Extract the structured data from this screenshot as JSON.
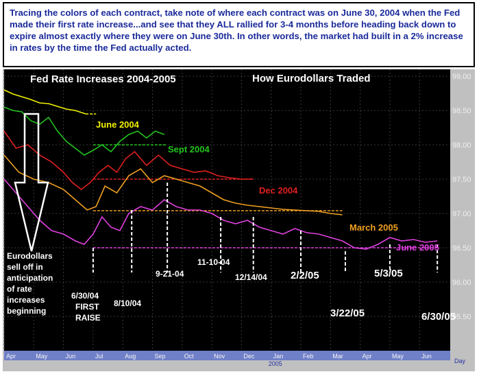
{
  "caption": "Tracing the colors of each contract, take note of where each contract was on June 30, 2004 when the Fed made their first rate increase...and see that they ALL rallied for 3-4 months before heading back down to expire almost exactly where they were on June 30th. In other words, the market had built in a 2% increase in rates by the time the Fed actually acted.",
  "chart_data": {
    "type": "line",
    "title": "Fed Rate Increases 2004-2005",
    "subtitle": "How Eurodollars Traded",
    "x_unit_label": "Day",
    "x_ticks": [
      "Apr",
      "May",
      "Jun",
      "Jul",
      "Aug",
      "Sep",
      "Oct",
      "Nov",
      "Dec",
      "Jan",
      "Feb",
      "Mar",
      "Apr",
      "May",
      "Jun"
    ],
    "x_year_label": "2005",
    "y_ticks": [
      "99.00",
      "98.50",
      "98.00",
      "97.50",
      "97.00",
      "96.50",
      "96.00",
      "95.50"
    ],
    "ylim": [
      95.0,
      99.1
    ],
    "grid": true,
    "series": [
      {
        "name": "June 2004",
        "color": "#f2f200",
        "x": [
          0,
          0.3,
          0.6,
          0.9,
          1.2,
          1.5,
          1.8,
          2.1,
          2.4,
          2.75
        ],
        "y": [
          98.8,
          98.74,
          98.7,
          98.66,
          98.61,
          98.6,
          98.56,
          98.52,
          98.5,
          98.45
        ],
        "ref_level": 98.45,
        "ref_x": [
          2.75,
          3.1
        ]
      },
      {
        "name": "Sept 2004",
        "color": "#22c41e",
        "x": [
          0,
          0.3,
          0.6,
          0.9,
          1.2,
          1.5,
          1.8,
          2.1,
          2.4,
          2.7,
          3.0,
          3.3,
          3.6,
          3.9,
          4.2,
          4.5,
          4.8,
          5.1,
          5.4
        ],
        "y": [
          98.55,
          98.5,
          98.48,
          98.35,
          98.3,
          98.4,
          98.2,
          98.05,
          97.95,
          97.85,
          97.92,
          98.0,
          97.9,
          98.05,
          98.15,
          98.2,
          98.1,
          98.2,
          98.15
        ],
        "ref_level": 98.0,
        "ref_x": [
          3.0,
          5.5
        ]
      },
      {
        "name": "Dec 2004",
        "color": "#e02020",
        "x": [
          0,
          0.4,
          0.8,
          1.2,
          1.6,
          2.0,
          2.3,
          2.6,
          2.9,
          3.2,
          3.5,
          3.8,
          4.1,
          4.4,
          4.8,
          5.2,
          5.6,
          6.0,
          6.4,
          6.8,
          7.2,
          7.6,
          8.0,
          8.4
        ],
        "y": [
          98.2,
          97.95,
          98.0,
          97.85,
          97.75,
          97.6,
          97.45,
          97.35,
          97.45,
          97.6,
          97.7,
          97.6,
          97.8,
          97.9,
          97.7,
          97.85,
          97.7,
          97.65,
          97.6,
          97.62,
          97.55,
          97.52,
          97.5,
          97.5
        ],
        "ref_level": 97.5,
        "ref_x": [
          3.0,
          8.4
        ]
      },
      {
        "name": "March 2005",
        "color": "#f0a020",
        "x": [
          0,
          0.5,
          1.0,
          1.5,
          2.0,
          2.4,
          2.8,
          3.1,
          3.4,
          3.8,
          4.2,
          4.6,
          5.0,
          5.4,
          5.8,
          6.2,
          6.6,
          7.0,
          7.4,
          7.8,
          8.2,
          8.6,
          9.0,
          9.4,
          9.8,
          10.2,
          10.6,
          11.0,
          11.4
        ],
        "y": [
          97.85,
          97.6,
          97.5,
          97.45,
          97.35,
          97.2,
          97.05,
          97.1,
          97.4,
          97.3,
          97.55,
          97.65,
          97.45,
          97.55,
          97.5,
          97.45,
          97.4,
          97.3,
          97.2,
          97.15,
          97.12,
          97.1,
          97.08,
          97.06,
          97.05,
          97.04,
          97.03,
          97.0,
          96.98
        ],
        "ref_level": 97.04,
        "ref_x": [
          3.0,
          11.4
        ]
      },
      {
        "name": "June 2005",
        "color": "#e040e0",
        "x": [
          0,
          0.4,
          0.8,
          1.2,
          1.6,
          2.0,
          2.4,
          2.7,
          3.0,
          3.3,
          3.6,
          3.9,
          4.2,
          4.6,
          5.0,
          5.4,
          5.8,
          6.2,
          6.6,
          7.0,
          7.4,
          7.8,
          8.2,
          8.6,
          9.0,
          9.4,
          9.8,
          10.2,
          10.6,
          11.0,
          11.4,
          11.8,
          12.2,
          12.6,
          13.0,
          13.4,
          13.8,
          14.2,
          14.6
        ],
        "y": [
          97.5,
          97.3,
          97.1,
          96.9,
          96.75,
          96.7,
          96.6,
          96.55,
          96.7,
          96.95,
          96.8,
          96.75,
          97.0,
          97.1,
          97.05,
          97.2,
          97.1,
          97.05,
          97.05,
          97.0,
          96.9,
          96.85,
          96.9,
          96.8,
          96.75,
          96.7,
          96.78,
          96.72,
          96.7,
          96.65,
          96.6,
          96.5,
          96.48,
          96.55,
          96.65,
          96.6,
          96.62,
          96.58,
          96.6
        ],
        "ref_level": 96.5,
        "ref_x": [
          3.0,
          14.6
        ]
      }
    ],
    "annotations": [
      {
        "text": "6/30/04",
        "x": 3.0,
        "line_top": 96.5
      },
      {
        "text": "8/10/04",
        "x": 4.3,
        "line_top": 97.05
      },
      {
        "text": "9-21-04",
        "x": 5.5,
        "line_top": 97.45
      },
      {
        "text": "11-10-04",
        "x": 7.3,
        "line_top": 96.95
      },
      {
        "text": "12/14/04",
        "x": 8.4,
        "line_top": 96.95
      },
      {
        "text": "2/2/05",
        "x": 10.0,
        "line_top": 96.75
      },
      {
        "text": "3/22/05",
        "x": 11.5,
        "line_top": 96.45
      },
      {
        "text": "5/3/05",
        "x": 13.0,
        "line_top": 96.55
      },
      {
        "text": "6/30/05",
        "x": 14.6,
        "line_top": 96.55
      }
    ],
    "first_raise_label": [
      "FIRST",
      "RAISE"
    ],
    "sell_off_note": [
      "Eurodollars",
      "sell off in",
      "anticipation",
      "of rate",
      "increases",
      "beginning"
    ]
  }
}
